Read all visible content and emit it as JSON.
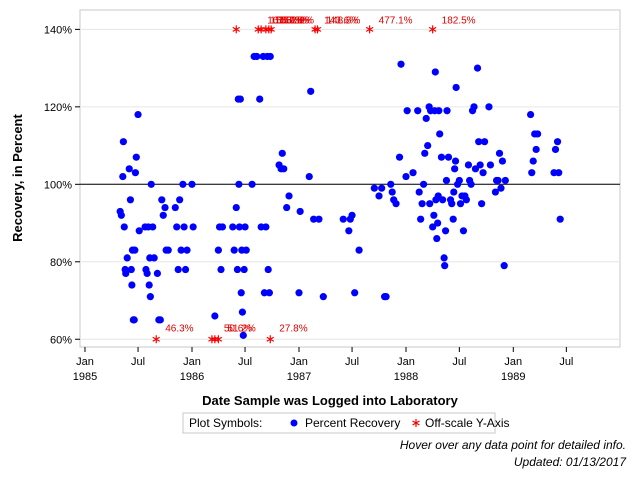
{
  "chart_data": {
    "type": "scatter",
    "xlabel": "Date Sample was Logged into Laboratory",
    "ylabel": "Recovery, in Percent",
    "xlim": [
      "1984-12-15",
      "1989-12-31"
    ],
    "ylim": [
      58,
      145
    ],
    "y_ticks": [
      60,
      80,
      100,
      120,
      140
    ],
    "y_tick_labels": [
      "60%",
      "80%",
      "100%",
      "120%",
      "140%"
    ],
    "x_ticks": [
      {
        "date": "1985-01-01",
        "label": "Jan",
        "year": "1985"
      },
      {
        "date": "1985-07-01",
        "label": "Jul",
        "year": ""
      },
      {
        "date": "1986-01-01",
        "label": "Jan",
        "year": "1986"
      },
      {
        "date": "1986-07-01",
        "label": "Jul",
        "year": ""
      },
      {
        "date": "1987-01-01",
        "label": "Jan",
        "year": "1987"
      },
      {
        "date": "1987-07-01",
        "label": "Jul",
        "year": ""
      },
      {
        "date": "1988-01-01",
        "label": "Jan",
        "year": "1988"
      },
      {
        "date": "1988-07-01",
        "label": "Jul",
        "year": ""
      },
      {
        "date": "1989-01-01",
        "label": "Jan",
        "year": "1989"
      },
      {
        "date": "1989-07-01",
        "label": "Jul",
        "year": ""
      }
    ],
    "reference_line": 100,
    "series": [
      {
        "name": "Percent Recovery",
        "color": "#0000ff",
        "marker": "circle",
        "points": [
          [
            "1985-05-01",
            93
          ],
          [
            "1985-05-05",
            92
          ],
          [
            "1985-05-10",
            102
          ],
          [
            "1985-05-12",
            111
          ],
          [
            "1985-05-15",
            89
          ],
          [
            "1985-05-18",
            78
          ],
          [
            "1985-05-20",
            77
          ],
          [
            "1985-05-25",
            81
          ],
          [
            "1985-06-01",
            104
          ],
          [
            "1985-06-05",
            96
          ],
          [
            "1985-06-08",
            78
          ],
          [
            "1985-06-10",
            74
          ],
          [
            "1985-06-12",
            83
          ],
          [
            "1985-06-15",
            65
          ],
          [
            "1985-06-18",
            65
          ],
          [
            "1985-06-20",
            83
          ],
          [
            "1985-06-22",
            103
          ],
          [
            "1985-06-25",
            107
          ],
          [
            "1985-07-01",
            118
          ],
          [
            "1985-07-05",
            88
          ],
          [
            "1985-07-25",
            89
          ],
          [
            "1985-07-28",
            78
          ],
          [
            "1985-08-01",
            77
          ],
          [
            "1985-08-05",
            89
          ],
          [
            "1985-08-08",
            74
          ],
          [
            "1985-08-10",
            81
          ],
          [
            "1985-08-12",
            71
          ],
          [
            "1985-08-15",
            100
          ],
          [
            "1985-08-20",
            89
          ],
          [
            "1985-08-25",
            81
          ],
          [
            "1985-09-05",
            77
          ],
          [
            "1985-09-10",
            65
          ],
          [
            "1985-09-15",
            65
          ],
          [
            "1985-09-20",
            96
          ],
          [
            "1985-09-25",
            92
          ],
          [
            "1985-10-01",
            94
          ],
          [
            "1985-10-05",
            83
          ],
          [
            "1985-10-12",
            83
          ],
          [
            "1985-11-05",
            94
          ],
          [
            "1985-11-10",
            89
          ],
          [
            "1985-11-15",
            78
          ],
          [
            "1985-11-20",
            96
          ],
          [
            "1985-11-25",
            83
          ],
          [
            "1985-12-01",
            100
          ],
          [
            "1985-12-05",
            89
          ],
          [
            "1985-12-10",
            78
          ],
          [
            "1985-12-15",
            83
          ],
          [
            "1986-01-01",
            100
          ],
          [
            "1986-01-05",
            89
          ],
          [
            "1986-03-20",
            66
          ],
          [
            "1986-04-01",
            83
          ],
          [
            "1986-04-05",
            89
          ],
          [
            "1986-04-10",
            78
          ],
          [
            "1986-04-15",
            89
          ],
          [
            "1986-05-20",
            89
          ],
          [
            "1986-05-25",
            83
          ],
          [
            "1986-06-01",
            94
          ],
          [
            "1986-06-05",
            78
          ],
          [
            "1986-06-08",
            122
          ],
          [
            "1986-06-10",
            100
          ],
          [
            "1986-06-12",
            89
          ],
          [
            "1986-06-15",
            122
          ],
          [
            "1986-06-18",
            72
          ],
          [
            "1986-06-20",
            83
          ],
          [
            "1986-06-22",
            67
          ],
          [
            "1986-06-25",
            61
          ],
          [
            "1986-06-28",
            78
          ],
          [
            "1986-07-01",
            89
          ],
          [
            "1986-07-05",
            83
          ],
          [
            "1986-07-25",
            100
          ],
          [
            "1986-08-01",
            133
          ],
          [
            "1986-08-10",
            133
          ],
          [
            "1986-08-20",
            122
          ],
          [
            "1986-08-25",
            89
          ],
          [
            "1986-09-01",
            133
          ],
          [
            "1986-09-05",
            72
          ],
          [
            "1986-09-10",
            89
          ],
          [
            "1986-09-15",
            133
          ],
          [
            "1986-09-18",
            78
          ],
          [
            "1986-09-22",
            72
          ],
          [
            "1986-09-25",
            133
          ],
          [
            "1986-10-25",
            105
          ],
          [
            "1986-11-01",
            104
          ],
          [
            "1986-11-05",
            108
          ],
          [
            "1986-11-10",
            104
          ],
          [
            "1986-11-20",
            94
          ],
          [
            "1986-11-28",
            97
          ],
          [
            "1987-01-01",
            72
          ],
          [
            "1987-01-05",
            93
          ],
          [
            "1987-02-05",
            102
          ],
          [
            "1987-02-10",
            124
          ],
          [
            "1987-02-20",
            91
          ],
          [
            "1987-03-10",
            91
          ],
          [
            "1987-03-25",
            71
          ],
          [
            "1987-06-01",
            91
          ],
          [
            "1987-06-20",
            88
          ],
          [
            "1987-06-25",
            91
          ],
          [
            "1987-07-01",
            92
          ],
          [
            "1987-07-10",
            72
          ],
          [
            "1987-07-25",
            83
          ],
          [
            "1987-09-15",
            99
          ],
          [
            "1987-10-01",
            97
          ],
          [
            "1987-10-10",
            99
          ],
          [
            "1987-10-20",
            71
          ],
          [
            "1987-10-25",
            71
          ],
          [
            "1987-11-10",
            100
          ],
          [
            "1987-11-15",
            98
          ],
          [
            "1987-11-20",
            96
          ],
          [
            "1987-11-28",
            95
          ],
          [
            "1987-12-10",
            107
          ],
          [
            "1987-12-15",
            131
          ],
          [
            "1988-01-01",
            102
          ],
          [
            "1988-01-05",
            119
          ],
          [
            "1988-01-25",
            103
          ],
          [
            "1988-02-10",
            119
          ],
          [
            "1988-02-15",
            98
          ],
          [
            "1988-02-20",
            91
          ],
          [
            "1988-02-25",
            95
          ],
          [
            "1988-03-01",
            100
          ],
          [
            "1988-03-05",
            108
          ],
          [
            "1988-03-10",
            117
          ],
          [
            "1988-03-15",
            110
          ],
          [
            "1988-03-20",
            120
          ],
          [
            "1988-03-22",
            95
          ],
          [
            "1988-03-25",
            119
          ],
          [
            "1988-04-01",
            89
          ],
          [
            "1988-04-05",
            92
          ],
          [
            "1988-04-08",
            119
          ],
          [
            "1988-04-10",
            129
          ],
          [
            "1988-04-12",
            96
          ],
          [
            "1988-04-15",
            86
          ],
          [
            "1988-04-18",
            90
          ],
          [
            "1988-04-20",
            97
          ],
          [
            "1988-04-22",
            119
          ],
          [
            "1988-04-25",
            113
          ],
          [
            "1988-05-01",
            107
          ],
          [
            "1988-05-05",
            96
          ],
          [
            "1988-05-10",
            81
          ],
          [
            "1988-05-12",
            79
          ],
          [
            "1988-05-15",
            88
          ],
          [
            "1988-05-18",
            101
          ],
          [
            "1988-05-20",
            119
          ],
          [
            "1988-05-25",
            107
          ],
          [
            "1988-06-01",
            96
          ],
          [
            "1988-06-05",
            95
          ],
          [
            "1988-06-10",
            91
          ],
          [
            "1988-06-12",
            98
          ],
          [
            "1988-06-15",
            104
          ],
          [
            "1988-06-18",
            106
          ],
          [
            "1988-06-20",
            125
          ],
          [
            "1988-06-25",
            100
          ],
          [
            "1988-07-01",
            101
          ],
          [
            "1988-07-05",
            95
          ],
          [
            "1988-07-10",
            97
          ],
          [
            "1988-07-15",
            88
          ],
          [
            "1988-07-20",
            97
          ],
          [
            "1988-07-25",
            96
          ],
          [
            "1988-08-01",
            105
          ],
          [
            "1988-08-05",
            101
          ],
          [
            "1988-08-10",
            100
          ],
          [
            "1988-08-15",
            119
          ],
          [
            "1988-08-20",
            120
          ],
          [
            "1988-08-25",
            104
          ],
          [
            "1988-09-01",
            130
          ],
          [
            "1988-09-05",
            111
          ],
          [
            "1988-09-10",
            105
          ],
          [
            "1988-09-15",
            95
          ],
          [
            "1988-09-20",
            103
          ],
          [
            "1988-09-25",
            111
          ],
          [
            "1988-10-10",
            120
          ],
          [
            "1988-10-15",
            105
          ],
          [
            "1988-11-01",
            98
          ],
          [
            "1988-11-05",
            101
          ],
          [
            "1988-11-10",
            101
          ],
          [
            "1988-11-15",
            108
          ],
          [
            "1988-11-20",
            99
          ],
          [
            "1988-11-25",
            106
          ],
          [
            "1988-12-01",
            79
          ],
          [
            "1988-12-05",
            101
          ],
          [
            "1989-03-01",
            118
          ],
          [
            "1989-03-05",
            103
          ],
          [
            "1989-03-10",
            106
          ],
          [
            "1989-03-15",
            113
          ],
          [
            "1989-03-20",
            109
          ],
          [
            "1989-03-25",
            113
          ],
          [
            "1989-05-20",
            103
          ],
          [
            "1989-05-25",
            109
          ],
          [
            "1989-06-01",
            111
          ],
          [
            "1989-06-05",
            103
          ],
          [
            "1989-06-10",
            91
          ]
        ]
      },
      {
        "name": "Off-scale Y-Axis",
        "color": "#ff0000",
        "marker": "star",
        "points": [
          {
            "date": "1986-06-01",
            "level": 140,
            "label": ""
          },
          {
            "date": "1986-08-15",
            "level": 140,
            "label": "167.3%"
          },
          {
            "date": "1986-08-25",
            "level": 140,
            "label": "158.9%"
          },
          {
            "date": "1986-09-10",
            "level": 140,
            "label": "156.3%"
          },
          {
            "date": "1986-09-20",
            "level": 140,
            "label": "157.8%"
          },
          {
            "date": "1986-09-28",
            "level": 140,
            "label": "152.2%"
          },
          {
            "date": "1987-02-25",
            "level": 140,
            "label": "143.6%"
          },
          {
            "date": "1987-03-05",
            "level": 140,
            "label": "148.8%"
          },
          {
            "date": "1987-08-30",
            "level": 140,
            "label": "477.1%"
          },
          {
            "date": "1988-04-01",
            "level": 140,
            "label": "182.5%"
          },
          {
            "date": "1985-09-01",
            "level": 60,
            "label": "46.3%"
          },
          {
            "date": "1986-03-10",
            "level": 60,
            "label": ""
          },
          {
            "date": "1986-03-20",
            "level": 60,
            "label": "50.6%"
          },
          {
            "date": "1986-04-01",
            "level": 60,
            "label": "51.2%"
          },
          {
            "date": "1986-09-25",
            "level": 60,
            "label": "27.8%"
          }
        ]
      }
    ],
    "legend_title": "Plot Symbols:",
    "legend_placement": "bottom"
  },
  "footnotes": {
    "hover_note": "Hover over any data point for detailed info.",
    "updated": "Updated: 01/13/2017"
  }
}
